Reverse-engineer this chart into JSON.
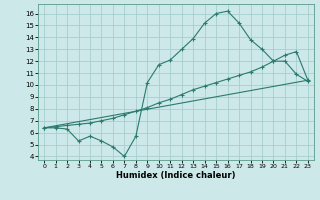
{
  "xlabel": "Humidex (Indice chaleur)",
  "bg_color": "#cce8e8",
  "grid_color": "#a8cece",
  "line_color": "#2a7a6e",
  "xlim": [
    -0.5,
    23.5
  ],
  "ylim": [
    3.7,
    16.8
  ],
  "xticks": [
    0,
    1,
    2,
    3,
    4,
    5,
    6,
    7,
    8,
    9,
    10,
    11,
    12,
    13,
    14,
    15,
    16,
    17,
    18,
    19,
    20,
    21,
    22,
    23
  ],
  "yticks": [
    4,
    5,
    6,
    7,
    8,
    9,
    10,
    11,
    12,
    13,
    14,
    15,
    16
  ],
  "line1_x": [
    0,
    1,
    2,
    3,
    4,
    5,
    6,
    7,
    8,
    9,
    10,
    11,
    12,
    13,
    14,
    15,
    16,
    17,
    18,
    19,
    20,
    21,
    22,
    23
  ],
  "line1_y": [
    6.4,
    6.4,
    6.3,
    5.3,
    5.7,
    5.3,
    4.8,
    4.0,
    5.7,
    10.2,
    11.7,
    12.1,
    13.0,
    13.9,
    15.2,
    16.0,
    16.2,
    15.2,
    13.8,
    13.0,
    12.0,
    12.0,
    10.9,
    10.3
  ],
  "line2_x": [
    0,
    1,
    2,
    3,
    4,
    5,
    6,
    7,
    8,
    9,
    10,
    11,
    12,
    13,
    14,
    15,
    16,
    17,
    18,
    19,
    20,
    21,
    22,
    23
  ],
  "line2_y": [
    6.4,
    6.5,
    6.6,
    6.7,
    6.8,
    7.0,
    7.2,
    7.5,
    7.8,
    8.1,
    8.5,
    8.8,
    9.2,
    9.6,
    9.9,
    10.2,
    10.5,
    10.8,
    11.1,
    11.5,
    12.0,
    12.5,
    12.8,
    10.4
  ],
  "line3_x": [
    0,
    23
  ],
  "line3_y": [
    6.4,
    10.4
  ]
}
